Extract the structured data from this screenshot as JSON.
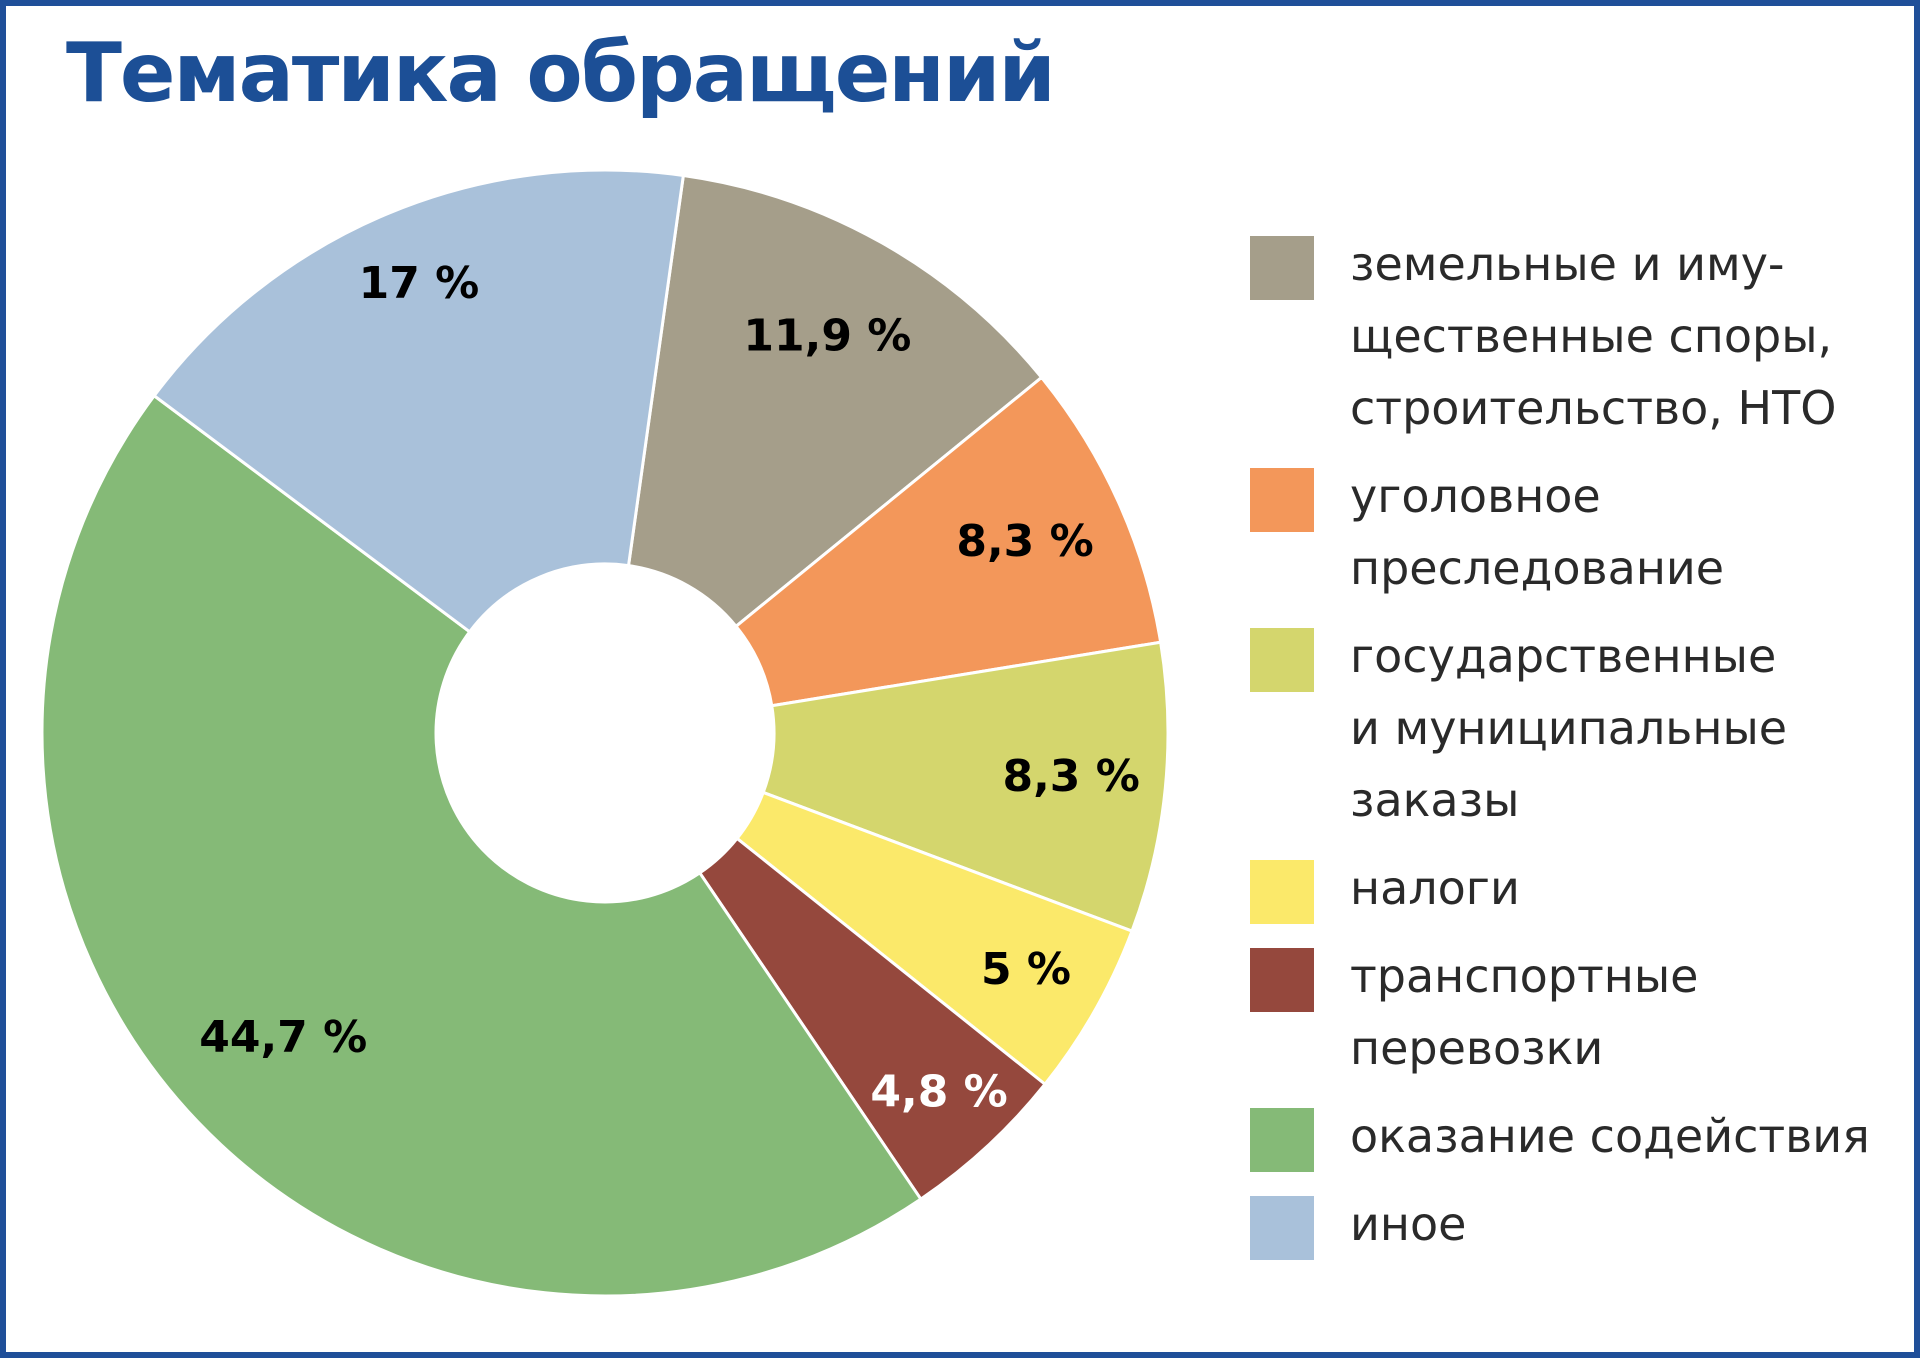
{
  "title": "Тематика обращений",
  "chart_data": {
    "type": "pie",
    "title": "Тематика обращений",
    "legend_position": "right",
    "slices": [
      {
        "label": "земельные и иму-\nщественные споры,\nстроительство, НТО",
        "value": 11.9,
        "value_label": "11,9 %",
        "color": "#a59e8a",
        "label_color": "#000000"
      },
      {
        "label": "уголовное\nпреследование",
        "value": 8.3,
        "value_label": "8,3 %",
        "color": "#f3975a",
        "label_color": "#000000"
      },
      {
        "label": "государственные\nи муниципальные\nзаказы",
        "value": 8.3,
        "value_label": "8,3 %",
        "color": "#d4d66d",
        "label_color": "#000000"
      },
      {
        "label": "налоги",
        "value": 5,
        "value_label": "5 %",
        "color": "#fbe96a",
        "label_color": "#000000"
      },
      {
        "label": "транспортные\nперевозки",
        "value": 4.8,
        "value_label": "4,8 %",
        "color": "#95483d",
        "label_color": "#ffffff"
      },
      {
        "label": "оказание содействия",
        "value": 44.7,
        "value_label": "44,7 %",
        "color": "#85ba77",
        "label_color": "#000000"
      },
      {
        "label": "иное",
        "value": 17,
        "value_label": "17 %",
        "color": "#a9c1da",
        "label_color": "#000000"
      }
    ]
  }
}
